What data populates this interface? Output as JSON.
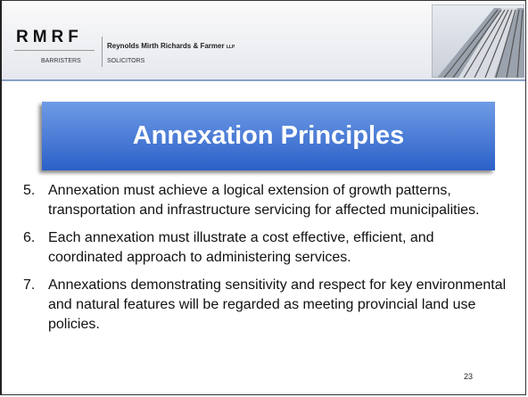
{
  "header": {
    "logo": "RMRF",
    "firm_name": "Reynolds Mirth Richards & Farmer",
    "firm_suffix": "LLP",
    "tag_left": "BARRISTERS",
    "tag_right": "SOLICITORS"
  },
  "title": "Annexation Principles",
  "items": [
    {
      "number": "5.",
      "text": "Annexation must achieve a logical extension of growth patterns, transportation and infrastructure servicing for affected municipalities."
    },
    {
      "number": "6.",
      "text": "Each annexation must illustrate a cost effective, efficient, and coordinated approach to administering services."
    },
    {
      "number": "7.",
      "text": "Annexations demonstrating sensitivity and respect for key environmental and natural features will be regarded as meeting provincial land use policies."
    }
  ],
  "page_number": "23"
}
